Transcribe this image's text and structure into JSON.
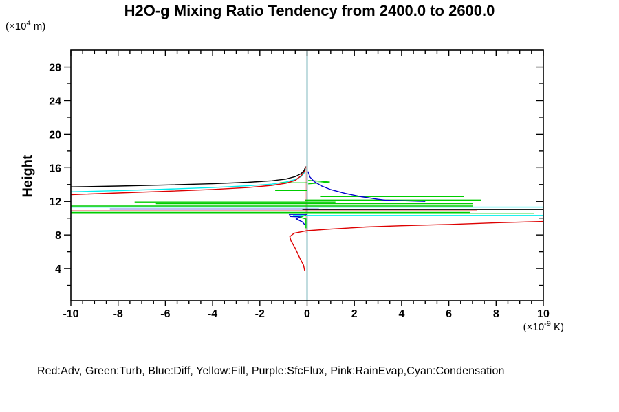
{
  "title": "H2O-g Mixing Ratio Tendency from 2400.0 to 2600.0",
  "legend": {
    "text": "Red:Adv, Green:Turb, Blue:Diff, Yellow:Fill, Purple:SfcFlux, Pink:RainEvap,Cyan:Condensation"
  },
  "colors": {
    "red": "#dd0000",
    "green": "#00cc00",
    "blue": "#0000cc",
    "yellow": "#eeee00",
    "purple": "#aa00aa",
    "pink": "#ffaaaa",
    "cyan": "#00eeee",
    "black": "#000000",
    "axis": "#000000",
    "background": "#ffffff"
  },
  "chart_data": {
    "type": "line",
    "title": "H2O-g Mixing Ratio Tendency from 2400.0 to 2600.0",
    "xlabel_unit": {
      "prefix": "(×10",
      "sup": "-9",
      "suffix": " K)"
    },
    "ylabel": "Height",
    "ylabel_unit": {
      "prefix": "(×10",
      "sup": "4",
      "suffix": " m)"
    },
    "x_axis": {
      "min": -10,
      "max": 10,
      "major_ticks": [
        -10,
        -8,
        -6,
        -4,
        -2,
        0,
        2,
        4,
        6,
        8,
        10
      ],
      "tick_labels": [
        "-10",
        "-8",
        "-6",
        "-4",
        "-2",
        "0",
        "2",
        "4",
        "6",
        "8",
        "10"
      ],
      "minor_step": 0.5
    },
    "y_axis": {
      "min": 0,
      "max": 30,
      "major_ticks": [
        4,
        8,
        12,
        16,
        20,
        24,
        28
      ],
      "tick_labels": [
        "4",
        "8",
        "12",
        "16",
        "20",
        "24",
        "28"
      ],
      "minor_ticks": [
        2,
        6,
        10,
        14,
        18,
        22,
        26
      ]
    },
    "zero_line_x": 0,
    "draw_order": [
      "Fill",
      "SfcFlux",
      "RainEvap",
      "Condensation",
      "Turb",
      "Diff",
      "Adv",
      "Black"
    ],
    "series": [
      {
        "name": "Fill",
        "color_key": "yellow",
        "paths": [
          [
            [
              0,
              0.2
            ],
            [
              0,
              29.9
            ]
          ]
        ]
      },
      {
        "name": "SfcFlux",
        "color_key": "purple",
        "paths": [
          [
            [
              0,
              0.2
            ],
            [
              0,
              29.9
            ]
          ]
        ]
      },
      {
        "name": "RainEvap",
        "color_key": "pink",
        "paths": [
          [
            [
              -0.04,
              8.2
            ],
            [
              -0.04,
              16.2
            ]
          ]
        ]
      },
      {
        "name": "Condensation",
        "color_key": "cyan",
        "paths": [
          [
            [
              0,
              0.2
            ],
            [
              0,
              29.9
            ]
          ],
          [
            [
              -10,
              13.14
            ],
            [
              -8,
              13.28
            ],
            [
              -6,
              13.45
            ],
            [
              -4,
              13.65
            ],
            [
              -2.5,
              13.85
            ],
            [
              -1.5,
              14.05
            ],
            [
              -0.9,
              14.3
            ],
            [
              -0.5,
              14.6
            ],
            [
              -0.25,
              14.95
            ],
            [
              -0.12,
              15.4
            ],
            [
              -0.07,
              15.85
            ]
          ],
          [
            [
              -10,
              11.32
            ],
            [
              10,
              11.32
            ]
          ],
          [
            [
              -0.6,
              10.32
            ],
            [
              10,
              10.32
            ]
          ]
        ]
      },
      {
        "name": "Turb",
        "color_key": "green",
        "paths": [
          [
            [
              0.55,
              12.57
            ],
            [
              6.65,
              12.57
            ]
          ],
          [
            [
              -0.1,
              12.16
            ],
            [
              7.35,
              12.16
            ]
          ],
          [
            [
              -7.3,
              11.92
            ],
            [
              1.2,
              11.92
            ]
          ],
          [
            [
              -6.4,
              11.73
            ],
            [
              7.0,
              11.73
            ]
          ],
          [
            [
              -10,
              11.45
            ],
            [
              7.0,
              11.45
            ]
          ],
          [
            [
              -10,
              10.68
            ],
            [
              6.9,
              10.68
            ]
          ],
          [
            [
              -10,
              10.52
            ],
            [
              9.6,
              10.52
            ]
          ],
          [
            [
              -1.15,
              14.2
            ],
            [
              0,
              14.2
            ]
          ],
          [
            [
              0.05,
              14.5
            ],
            [
              0.96,
              14.3
            ],
            [
              0.05,
              14.08
            ]
          ],
          [
            [
              -1.35,
              13.3
            ],
            [
              0,
              13.3
            ]
          ],
          [
            [
              -0.05,
              10.35
            ],
            [
              -0.3,
              10.1
            ],
            [
              -0.05,
              9.9
            ],
            [
              -0.05,
              8.8
            ]
          ]
        ]
      },
      {
        "name": "Diff",
        "color_key": "blue",
        "paths": [
          [
            [
              0.04,
              15.55
            ],
            [
              0.12,
              14.9
            ],
            [
              0.3,
              14.35
            ],
            [
              0.6,
              13.85
            ],
            [
              1.0,
              13.4
            ],
            [
              1.6,
              12.95
            ],
            [
              2.3,
              12.55
            ],
            [
              3.0,
              12.25
            ],
            [
              3.3,
              12.15
            ],
            [
              5.0,
              12.0
            ]
          ],
          [
            [
              -8.35,
              11.08
            ],
            [
              0.5,
              11.08
            ]
          ],
          [
            [
              0,
              10.45
            ],
            [
              -0.75,
              10.45
            ],
            [
              -0.7,
              10.2
            ],
            [
              -0.3,
              10.15
            ],
            [
              -0.45,
              9.9
            ],
            [
              -0.2,
              9.55
            ],
            [
              -0.08,
              9.15
            ]
          ]
        ]
      },
      {
        "name": "Adv",
        "color_key": "red",
        "paths": [
          [
            [
              -10,
              12.8
            ],
            [
              -8,
              13.0
            ],
            [
              -6,
              13.2
            ],
            [
              -4,
              13.42
            ],
            [
              -2.5,
              13.65
            ],
            [
              -1.5,
              13.9
            ],
            [
              -0.9,
              14.15
            ],
            [
              -0.5,
              14.5
            ],
            [
              -0.25,
              15.05
            ],
            [
              -0.12,
              15.55
            ],
            [
              -0.07,
              16.05
            ]
          ],
          [
            [
              -10,
              10.85
            ],
            [
              7.2,
              10.85
            ]
          ],
          [
            [
              -0.1,
              3.7
            ],
            [
              -0.15,
              4.4
            ],
            [
              -0.3,
              5.2
            ],
            [
              -0.5,
              6.4
            ],
            [
              -0.68,
              7.3
            ],
            [
              -0.73,
              7.8
            ],
            [
              -0.55,
              8.2
            ],
            [
              0,
              8.5
            ],
            [
              1,
              8.7
            ],
            [
              2.5,
              8.95
            ],
            [
              4,
              9.1
            ],
            [
              6,
              9.25
            ],
            [
              8,
              9.45
            ],
            [
              10,
              9.6
            ]
          ]
        ]
      },
      {
        "name": "Black",
        "color_key": "black",
        "paths": [
          [
            [
              -10,
              13.72
            ],
            [
              -8,
              13.82
            ],
            [
              -6,
              13.95
            ],
            [
              -4,
              14.1
            ],
            [
              -2.5,
              14.27
            ],
            [
              -1.5,
              14.45
            ],
            [
              -0.9,
              14.65
            ],
            [
              -0.5,
              14.95
            ],
            [
              -0.25,
              15.3
            ],
            [
              -0.12,
              15.7
            ],
            [
              -0.07,
              16.15
            ]
          ],
          [
            [
              -0.2,
              11.02
            ],
            [
              10,
              11.02
            ]
          ]
        ]
      }
    ]
  }
}
